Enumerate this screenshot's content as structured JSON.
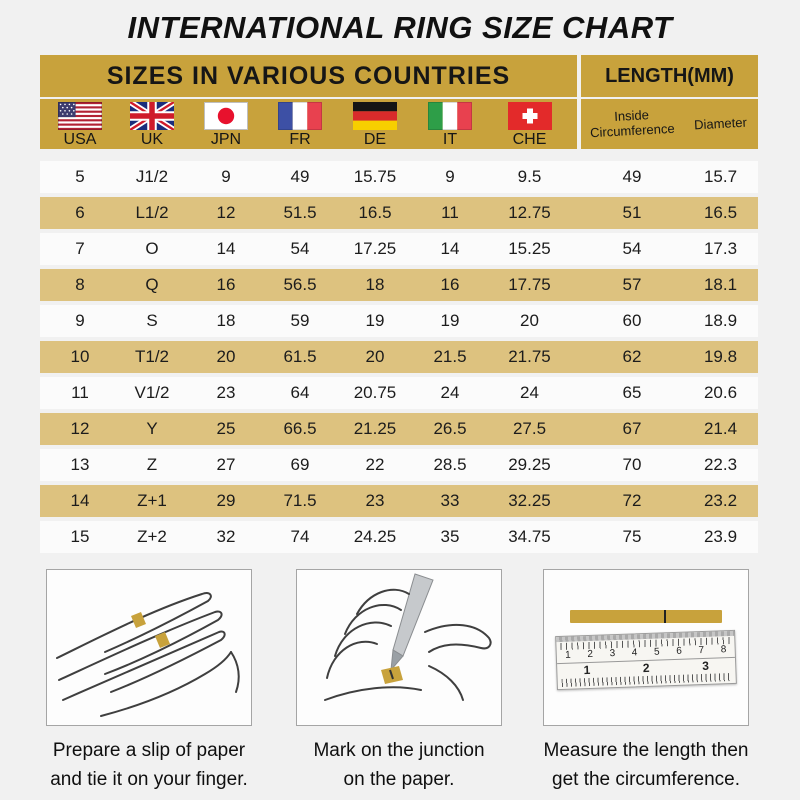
{
  "title": "INTERNATIONAL RING SIZE CHART",
  "chart_data": {
    "type": "table",
    "title": "INTERNATIONAL RING SIZE CHART",
    "column_groups": [
      {
        "label": "SIZES IN VARIOUS COUNTRIES",
        "span": 7
      },
      {
        "label": "LENGTH(MM)",
        "span": 2
      }
    ],
    "columns": [
      {
        "label": "USA",
        "icon": "usa-flag-icon",
        "flag": "us"
      },
      {
        "label": "UK",
        "icon": "uk-flag-icon",
        "flag": "uk"
      },
      {
        "label": "JPN",
        "icon": "japan-flag-icon",
        "flag": "jp"
      },
      {
        "label": "FR",
        "icon": "france-flag-icon",
        "flag": "fr"
      },
      {
        "label": "DE",
        "icon": "germany-flag-icon",
        "flag": "de"
      },
      {
        "label": "IT",
        "icon": "italy-flag-icon",
        "flag": "it"
      },
      {
        "label": "CHE",
        "icon": "switzerland-flag-icon",
        "flag": "ch"
      },
      {
        "label": "Inside Circumference"
      },
      {
        "label": "Diameter"
      }
    ],
    "rows": [
      [
        "5",
        "J1/2",
        "9",
        "49",
        "15.75",
        "9",
        "9.5",
        "49",
        "15.7"
      ],
      [
        "6",
        "L1/2",
        "12",
        "51.5",
        "16.5",
        "11",
        "12.75",
        "51",
        "16.5"
      ],
      [
        "7",
        "O",
        "14",
        "54",
        "17.25",
        "14",
        "15.25",
        "54",
        "17.3"
      ],
      [
        "8",
        "Q",
        "16",
        "56.5",
        "18",
        "16",
        "17.75",
        "57",
        "18.1"
      ],
      [
        "9",
        "S",
        "18",
        "59",
        "19",
        "19",
        "20",
        "60",
        "18.9"
      ],
      [
        "10",
        "T1/2",
        "20",
        "61.5",
        "20",
        "21.5",
        "21.75",
        "62",
        "19.8"
      ],
      [
        "11",
        "V1/2",
        "23",
        "64",
        "20.75",
        "24",
        "24",
        "65",
        "20.6"
      ],
      [
        "12",
        "Y",
        "25",
        "66.5",
        "21.25",
        "26.5",
        "27.5",
        "67",
        "21.4"
      ],
      [
        "13",
        "Z",
        "27",
        "69",
        "22",
        "28.5",
        "29.25",
        "70",
        "22.3"
      ],
      [
        "14",
        "Z+1",
        "29",
        "71.5",
        "23",
        "33",
        "32.25",
        "72",
        "23.2"
      ],
      [
        "15",
        "Z+2",
        "32",
        "74",
        "24.25",
        "35",
        "34.75",
        "75",
        "23.9"
      ]
    ]
  },
  "instructions": [
    {
      "icon": "hand-paper-slip-illustration",
      "lines": [
        "Prepare a slip of paper",
        "and tie it on your finger."
      ]
    },
    {
      "icon": "mark-junction-illustration",
      "lines": [
        "Mark on the junction",
        "on the paper."
      ]
    },
    {
      "icon": "ruler-measure-illustration",
      "lines": [
        "Measure the length then",
        "get the circumference."
      ]
    }
  ],
  "ruler": {
    "cm_numbers": [
      "1",
      "2",
      "3",
      "4",
      "5",
      "6",
      "7",
      "8"
    ],
    "inch_numbers": [
      "1",
      "2",
      "3"
    ]
  },
  "colors": {
    "gold_header": "#c8a23c",
    "gold_row": "#ddc27f",
    "row_alt": "#fbfbfb",
    "page_background": "#f1f1f1",
    "text": "#1c1c1c"
  }
}
